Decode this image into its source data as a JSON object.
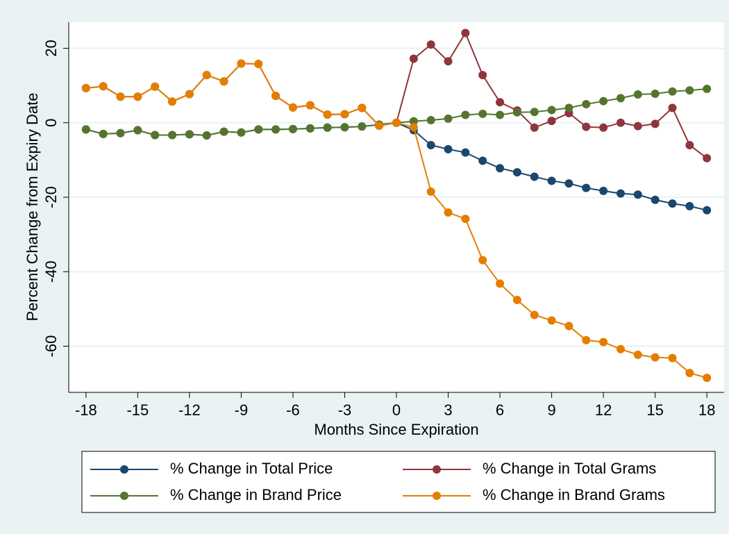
{
  "chart_data": {
    "type": "line",
    "y_label": "Percent Change from Expiry Date",
    "x_label": "Months Since Expiration",
    "x": [
      -18,
      -17,
      -16,
      -15,
      -14,
      -13,
      -12,
      -11,
      -10,
      -9,
      -8,
      -7,
      -6,
      -5,
      -4,
      -3,
      -2,
      -1,
      0,
      1,
      2,
      3,
      4,
      5,
      6,
      7,
      8,
      9,
      10,
      11,
      12,
      13,
      14,
      15,
      16,
      17,
      18
    ],
    "series": [
      {
        "name": "% Change in Total Price",
        "color": "#1a476f",
        "values": [
          -1.8,
          -3.0,
          -2.8,
          -2.0,
          -3.3,
          -3.3,
          -3.1,
          -3.4,
          -2.4,
          -2.6,
          -1.8,
          -1.8,
          -1.7,
          -1.5,
          -1.3,
          -1.2,
          -1.0,
          -0.5,
          0,
          -2.0,
          -6.0,
          -7.1,
          -8.0,
          -10.2,
          -12.2,
          -13.3,
          -14.5,
          -15.6,
          -16.3,
          -17.5,
          -18.3,
          -19.0,
          -19.3,
          -20.7,
          -21.7,
          -22.4,
          -23.5
        ]
      },
      {
        "name": "% Change in Total Grams",
        "color": "#90353b",
        "values": [
          9.3,
          9.8,
          7.0,
          7.0,
          9.7,
          5.7,
          7.7,
          12.8,
          11.1,
          15.9,
          15.8,
          7.2,
          4.1,
          4.7,
          2.2,
          2.3,
          4.0,
          -0.8,
          0,
          17.2,
          21.0,
          16.5,
          24.1,
          12.8,
          5.5,
          3.3,
          -1.3,
          0.5,
          2.6,
          -1.1,
          -1.3,
          0.0,
          -0.9,
          -0.3,
          4.0,
          -6.0,
          -9.5
        ]
      },
      {
        "name": "% Change in Brand Price",
        "color": "#55752f",
        "values": [
          -1.8,
          -3.0,
          -2.8,
          -2.0,
          -3.3,
          -3.3,
          -3.1,
          -3.4,
          -2.4,
          -2.6,
          -1.8,
          -1.8,
          -1.7,
          -1.5,
          -1.3,
          -1.2,
          -1.0,
          -0.5,
          0,
          0.4,
          0.7,
          1.1,
          2.1,
          2.4,
          2.1,
          2.8,
          2.9,
          3.4,
          4.0,
          5.0,
          5.8,
          6.6,
          7.6,
          7.8,
          8.4,
          8.7,
          9.1
        ]
      },
      {
        "name": "% Change in Brand Grams",
        "color": "#e37e00",
        "values": [
          9.3,
          9.8,
          7.0,
          7.0,
          9.7,
          5.7,
          7.7,
          12.8,
          11.1,
          15.9,
          15.8,
          7.2,
          4.1,
          4.7,
          2.2,
          2.3,
          4.0,
          -0.8,
          0,
          -1.2,
          -18.5,
          -24.1,
          -25.8,
          -36.9,
          -43.2,
          -47.6,
          -51.6,
          -53.1,
          -54.6,
          -58.4,
          -58.9,
          -60.8,
          -62.3,
          -63.0,
          -63.2,
          -67.2,
          -68.5
        ]
      }
    ],
    "xlim": [
      -19,
      19
    ],
    "xticks": [
      -18,
      -15,
      -12,
      -9,
      -6,
      -3,
      0,
      3,
      6,
      9,
      12,
      15,
      18
    ],
    "ylim": [
      -72.4,
      27
    ],
    "yticks": [
      -60,
      -40,
      -20,
      0,
      20
    ],
    "grid": true,
    "legend": "bottom"
  }
}
